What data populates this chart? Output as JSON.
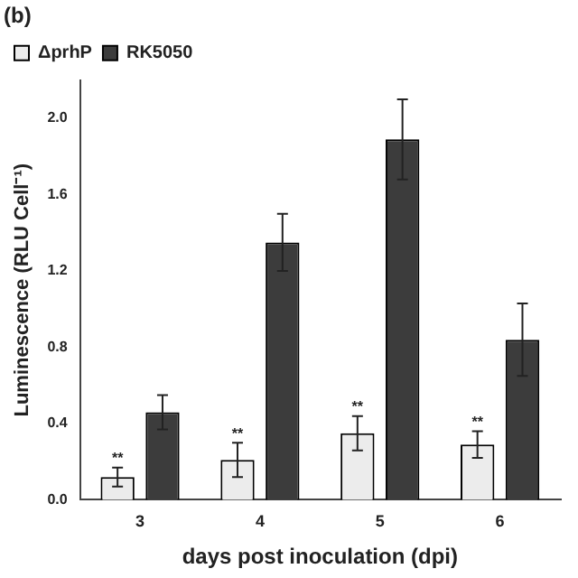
{
  "chart_data": {
    "type": "bar",
    "title": "(b)",
    "xlabel": "days post inoculation (dpi)",
    "ylabel": "Luminescence (RLU Cell⁻¹)",
    "categories": [
      "3",
      "4",
      "5",
      "6"
    ],
    "series": [
      {
        "name": "ΔprhP",
        "color": "#ececec",
        "values": [
          0.12,
          0.21,
          0.35,
          0.29
        ],
        "errors": [
          0.05,
          0.09,
          0.09,
          0.07
        ],
        "value_labels": [
          "**",
          "**",
          "**",
          "**"
        ]
      },
      {
        "name": "RK5050",
        "color": "#3c3c3c",
        "values": [
          0.46,
          1.35,
          1.89,
          0.84
        ],
        "errors": [
          0.09,
          0.15,
          0.21,
          0.19
        ]
      }
    ],
    "ylim": [
      0,
      2.2
    ],
    "yticks": [
      {
        "value": 0,
        "label": "0.0"
      },
      {
        "value": 0.4,
        "label": "0.4"
      },
      {
        "value": 0.8,
        "label": "0.8"
      },
      {
        "value": 1.2,
        "label": "1.2"
      },
      {
        "value": 1.6,
        "label": "1.6"
      },
      {
        "value": 2,
        "label": "2.0"
      }
    ],
    "grid": false,
    "legend": "top left"
  }
}
